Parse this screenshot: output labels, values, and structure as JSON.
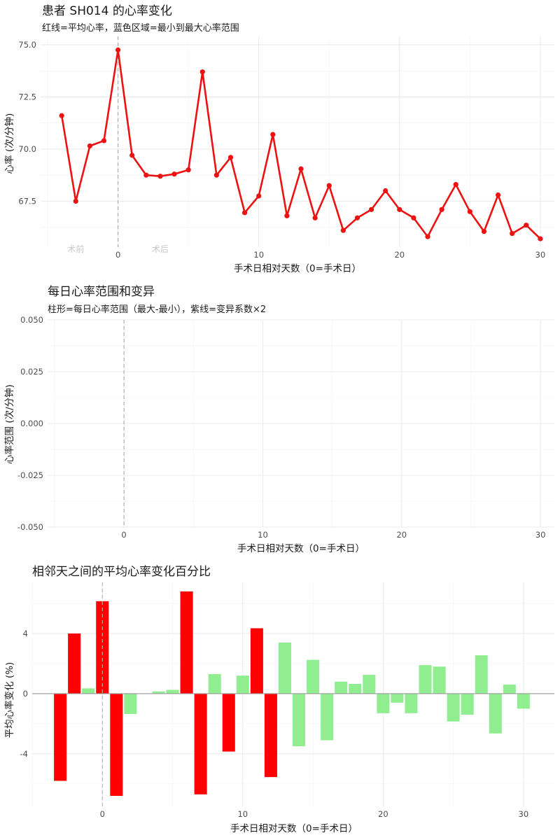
{
  "chart_data": [
    {
      "type": "line",
      "title": "患者 SH014 的心率变化",
      "subtitle": "红线=平均心率，蓝色区域=最小到最大心率范围",
      "xlabel": "手术日相对天数（0=手术日）",
      "ylabel": "心率 (次/分钟)",
      "xlim": [
        -5.5,
        31
      ],
      "ylim": [
        65.3,
        75.4
      ],
      "x_ticks": [
        0,
        10,
        20,
        30
      ],
      "y_ticks": [
        67.5,
        70.0,
        72.5,
        75.0
      ],
      "y_tick_labels": [
        "67.5",
        "70.0",
        "72.5",
        "75.0"
      ],
      "grid": true,
      "surgery_day_line": 0,
      "annotations": [
        "术前",
        "术后"
      ],
      "colors": {
        "line": "#ee1111",
        "vline": "#a6a6a6"
      },
      "series": [
        {
          "x": [
            -4,
            -3,
            -2,
            -1,
            0,
            1,
            2,
            3,
            4,
            5,
            6,
            7,
            8,
            9,
            10,
            11,
            12,
            13,
            14,
            15,
            16,
            17,
            18,
            19,
            20,
            21,
            22,
            23,
            24,
            25,
            26,
            27,
            28,
            29,
            30
          ],
          "values": [
            71.6,
            67.5,
            70.15,
            70.4,
            74.75,
            69.7,
            68.75,
            68.7,
            68.8,
            69.0,
            73.7,
            68.75,
            69.6,
            66.95,
            67.75,
            70.7,
            66.8,
            69.05,
            66.7,
            68.25,
            66.1,
            66.7,
            67.1,
            68.0,
            67.1,
            66.7,
            65.8,
            67.1,
            68.3,
            67.0,
            66.05,
            67.8,
            65.95,
            66.35,
            65.7
          ]
        }
      ]
    },
    {
      "type": "bar",
      "title": "每日心率范围和变异",
      "subtitle": "柱形=每日心率范围（最大-最小），紫线=变异系数×2",
      "xlabel": "手术日相对天数（0=手术日）",
      "ylabel": "心率范围 (次/分钟)",
      "xlim": [
        -5.5,
        31
      ],
      "ylim": [
        -0.05,
        0.05
      ],
      "x_ticks": [
        0,
        10,
        20,
        30
      ],
      "y_ticks": [
        -0.05,
        -0.025,
        0,
        0.025,
        0.05
      ],
      "y_tick_labels": [
        "-0.050",
        "-0.025",
        "0.000",
        "0.025",
        "0.050"
      ],
      "grid": true,
      "surgery_day_line": 0,
      "series": []
    },
    {
      "type": "bar",
      "title": "相邻天之间的平均心率变化百分比",
      "xlabel": "手术日相对天数（0=手术日）",
      "ylabel": "平均心率变化 (%)",
      "xlim": [
        -5,
        32.2
      ],
      "ylim": [
        -7.5,
        7.4
      ],
      "x_ticks": [
        0,
        10,
        20,
        30
      ],
      "y_ticks": [
        -4,
        0,
        4
      ],
      "y_tick_labels": [
        "-4",
        "0",
        "4"
      ],
      "grid": true,
      "surgery_day_line": 0,
      "colors": {
        "large_change": "#ff0000",
        "small_change": "#90ee90",
        "zero_line": "#9a9a9a",
        "vline": "#b3b3b3"
      },
      "series": [
        {
          "x": [
            -3,
            -2,
            -1,
            0,
            1,
            2,
            3,
            4,
            5,
            6,
            7,
            8,
            9,
            10,
            11,
            12,
            13,
            14,
            15,
            16,
            17,
            18,
            19,
            20,
            21,
            22,
            23,
            24,
            25,
            26,
            27,
            28,
            29,
            30
          ],
          "values": [
            -5.8,
            4.0,
            0.35,
            6.15,
            -6.8,
            -1.35,
            0,
            0.15,
            0.25,
            6.8,
            -6.7,
            1.3,
            -3.85,
            1.2,
            4.35,
            -5.55,
            3.4,
            -3.5,
            2.25,
            -3.1,
            0.8,
            0.65,
            1.25,
            -1.3,
            -0.6,
            -1.3,
            1.9,
            1.8,
            -1.85,
            -1.4,
            2.55,
            -2.65,
            0.6,
            -1.0
          ],
          "significant": [
            true,
            true,
            false,
            true,
            true,
            false,
            false,
            false,
            false,
            true,
            true,
            false,
            true,
            false,
            true,
            true,
            false,
            false,
            false,
            false,
            false,
            false,
            false,
            false,
            false,
            false,
            false,
            false,
            false,
            false,
            false,
            false,
            false,
            false
          ]
        }
      ]
    }
  ]
}
